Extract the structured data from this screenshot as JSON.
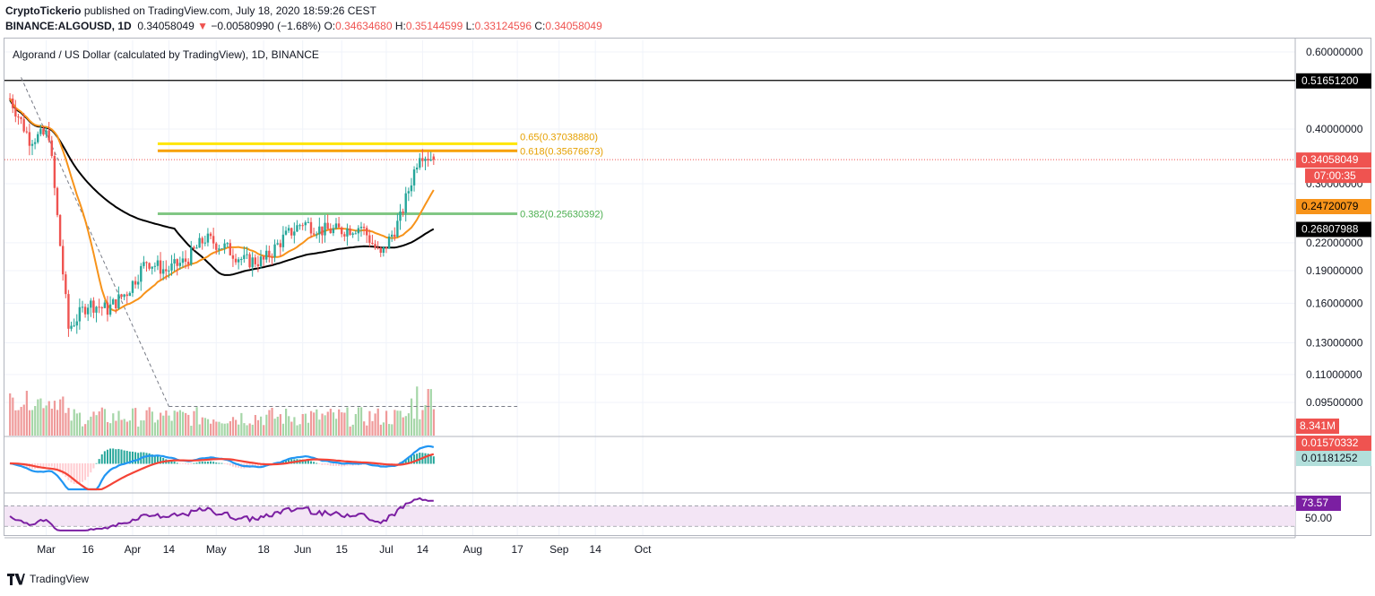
{
  "header": {
    "publisher": "CryptoTickerio",
    "published_text": "published on TradingView.com, July 18, 2020 18:59:26 CEST",
    "symbol": "BINANCE:ALGOUSD, 1D",
    "last": "0.34058049",
    "change_arrow": "▼",
    "change": "−0.00580990 (−1.68%)",
    "o_label": "O:",
    "o_value": "0.34634680",
    "h_label": "H:",
    "h_value": "0.35144599",
    "l_label": "L:",
    "l_value": "0.33124596",
    "c_label": "C:",
    "c_value": "0.34058049"
  },
  "footer": {
    "brand": "TradingView"
  },
  "colors": {
    "up": "#26a69a",
    "down": "#ef5350",
    "ma200": "#000000",
    "ma50": "#f7931a",
    "fib_yellow": "#ffe600",
    "fib_orange": "#f7a000",
    "fib_green": "#81c784",
    "macd": "#2196f3",
    "signal": "#f44336",
    "rsi": "#7b1fa2"
  },
  "chart_data": {
    "type": "candlestick",
    "title": "Algorand / US Dollar (calculated by TradingView), 1D, BINANCE",
    "x_ticks": [
      "Mar",
      "16",
      "Apr",
      "14",
      "May",
      "18",
      "Jun",
      "15",
      "Jul",
      "14",
      "Aug",
      "17",
      "Sep",
      "14",
      "Oct"
    ],
    "y_ticks": [
      "0.60000000",
      "0.40000000",
      "0.22000000",
      "0.19000000",
      "0.16000000",
      "0.13000000",
      "0.11000000",
      "0.09500000"
    ],
    "y_tick_hidden": "0.30000000",
    "price_labels": {
      "resistance": "0.51651200",
      "last": "0.34058049",
      "countdown": "07:00:35",
      "ma200": "0.26807988",
      "ma50": "0.24720079",
      "volume": "8.341M"
    },
    "horizontal_line": 0.516512,
    "fib_levels": [
      {
        "label": "0.65(0.37038880)",
        "value": 0.3703888
      },
      {
        "label": "0.618(0.35676673)",
        "value": 0.35676673
      },
      {
        "label": "0.382(0.25630392)",
        "value": 0.25630392
      }
    ],
    "trendline": {
      "from": [
        "2020-02-21",
        0.525
      ],
      "to": [
        "2020-04-14",
        0.093
      ]
    },
    "ohlc_weekly": [
      {
        "date": "2020-02-17",
        "close": 0.47
      },
      {
        "date": "2020-02-24",
        "close": 0.38
      },
      {
        "date": "2020-03-02",
        "close": 0.39
      },
      {
        "date": "2020-03-09",
        "close": 0.14
      },
      {
        "date": "2020-03-16",
        "close": 0.16
      },
      {
        "date": "2020-03-23",
        "close": 0.155
      },
      {
        "date": "2020-03-30",
        "close": 0.17
      },
      {
        "date": "2020-04-06",
        "close": 0.2
      },
      {
        "date": "2020-04-13",
        "close": 0.19
      },
      {
        "date": "2020-04-20",
        "close": 0.2
      },
      {
        "date": "2020-04-27",
        "close": 0.225
      },
      {
        "date": "2020-05-04",
        "close": 0.215
      },
      {
        "date": "2020-05-11",
        "close": 0.2
      },
      {
        "date": "2020-05-18",
        "close": 0.2
      },
      {
        "date": "2020-05-25",
        "close": 0.225
      },
      {
        "date": "2020-06-01",
        "close": 0.245
      },
      {
        "date": "2020-06-08",
        "close": 0.235
      },
      {
        "date": "2020-06-15",
        "close": 0.235
      },
      {
        "date": "2020-06-22",
        "close": 0.24
      },
      {
        "date": "2020-06-29",
        "close": 0.205
      },
      {
        "date": "2020-07-06",
        "close": 0.25
      },
      {
        "date": "2020-07-13",
        "close": 0.355
      },
      {
        "date": "2020-07-18",
        "close": 0.34058049
      }
    ],
    "macd_labels": [
      "0.01570332",
      "0.01181252"
    ],
    "rsi_labels": [
      "73.57",
      "50.00"
    ],
    "grid": true
  }
}
